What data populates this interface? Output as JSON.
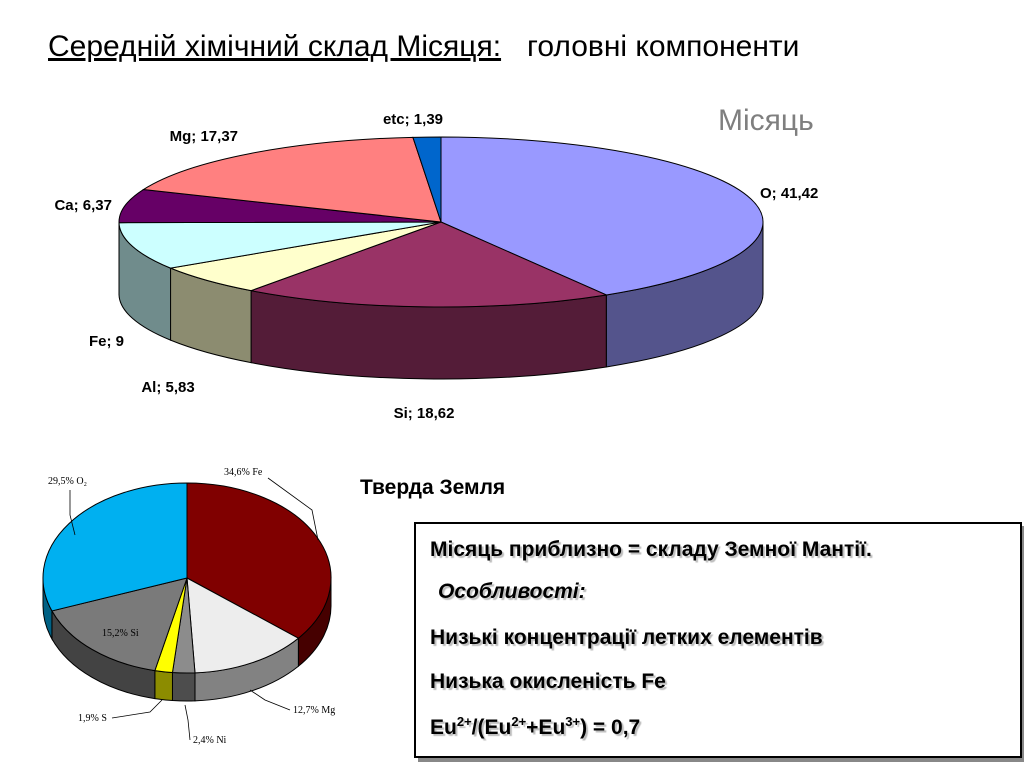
{
  "title": {
    "underlined": "Середній хімічний склад Місяця:",
    "rest": "головні компоненти"
  },
  "moon_label": "Місяць",
  "earth_label": "Тверда Земля",
  "info_box": {
    "line1": "Місяць приблизно = складу Земної Мантії.",
    "line2": "Особливості:",
    "line3": "Низькі концентрації летких елементів",
    "line4": "Низька окисленість Fe",
    "line5_prefix": "Eu",
    "line5_sup1": "2+",
    "line5_mid": "/(Eu",
    "line5_sup2": "2+",
    "line5_plus": "+Eu",
    "line5_sup3": "3+",
    "line5_suffix": ") = 0,7"
  },
  "chart_data": [
    {
      "type": "pie",
      "title": "Місяць",
      "slices": [
        {
          "name": "O",
          "value": 41.42,
          "label": "O; 41,42",
          "color": "#9999ff"
        },
        {
          "name": "Si",
          "value": 18.62,
          "label": "Si; 18,62",
          "color": "#993366"
        },
        {
          "name": "Al",
          "value": 5.83,
          "label": "Al; 5,83",
          "color": "#ffffcc"
        },
        {
          "name": "Fe",
          "value": 9,
          "label": "Fe; 9",
          "color": "#ccffff"
        },
        {
          "name": "Ca",
          "value": 6.37,
          "label": "Ca; 6,37",
          "color": "#660066"
        },
        {
          "name": "Mg",
          "value": 17.37,
          "label": "Mg; 17,37",
          "color": "#ff8080"
        },
        {
          "name": "etc",
          "value": 1.39,
          "label": "etc; 1,39",
          "color": "#0066cc"
        }
      ]
    },
    {
      "type": "pie",
      "title": "Тверда Земля",
      "slices": [
        {
          "name": "Fe",
          "value": 34.6,
          "label": "34,6% Fe",
          "color": "#800000"
        },
        {
          "name": "Mg",
          "value": 12.7,
          "label": "12,7% Mg",
          "color": "#ededed"
        },
        {
          "name": "Ni",
          "value": 2.4,
          "label": "2,4% Ni",
          "color": "#8c8c8c"
        },
        {
          "name": "S",
          "value": 1.9,
          "label": "1,9% S",
          "color": "#ffff00"
        },
        {
          "name": "Si",
          "value": 15.2,
          "label": "15,2% Si",
          "color": "#7a7a7a"
        },
        {
          "name": "O2",
          "value": 29.5,
          "label": "29,5% O₂",
          "color": "#00b0f0"
        }
      ]
    }
  ]
}
